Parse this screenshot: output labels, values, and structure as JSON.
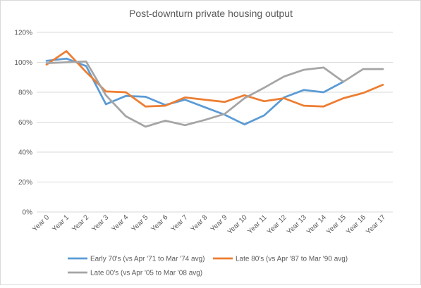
{
  "chart_data": {
    "type": "line",
    "title": "Post-downturn private housing output",
    "xlabel": "",
    "ylabel": "",
    "categories": [
      "Year 0",
      "Year 1",
      "Year 2",
      "Year 3",
      "Year 4",
      "Year 5",
      "Year 6",
      "Year 7",
      "Year 8",
      "Year 9",
      "Year 10",
      "Year 11",
      "Year 12",
      "Year 13",
      "Year 14",
      "Year 15",
      "Year 16",
      "Year 17"
    ],
    "ylim": [
      0,
      120
    ],
    "yticks": [
      "0%",
      "20%",
      "40%",
      "60%",
      "80%",
      "100%",
      "120%"
    ],
    "ytick_values": [
      0,
      20,
      40,
      60,
      80,
      100,
      120
    ],
    "grid": true,
    "legend_position": "bottom",
    "series": [
      {
        "name": "Early 70's (vs Apr '71 to Mar '74 avg)",
        "color": "#5b9bd5",
        "values": [
          101,
          102.5,
          97.5,
          72,
          77.5,
          77,
          71.5,
          75,
          70,
          65,
          58.5,
          64.5,
          76.5,
          81.5,
          80,
          87,
          null,
          null
        ]
      },
      {
        "name": "Late 80's (vs Apr '87 to Mar '90 avg)",
        "color": "#ed7d31",
        "values": [
          98.5,
          107.5,
          93.5,
          80.5,
          80,
          70.5,
          71,
          76.5,
          75,
          73.5,
          78,
          74,
          76,
          71,
          70.5,
          76,
          79.5,
          85
        ]
      },
      {
        "name": "Late 00's (vs Apr '05 to Mar '08 avg)",
        "color": "#a5a5a5",
        "values": [
          99.5,
          100,
          100.5,
          78,
          64,
          57,
          61,
          58,
          61.5,
          65.5,
          76,
          83,
          90.5,
          95,
          96.5,
          87,
          95.5,
          95.5
        ]
      }
    ]
  }
}
